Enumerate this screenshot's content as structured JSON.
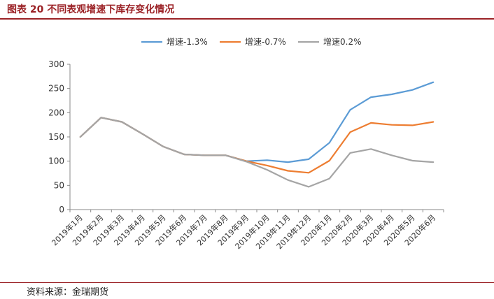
{
  "figure": {
    "title": "图表 20 不同表观增速下库存变化情况",
    "source": "资料来源：金瑞期货"
  },
  "chart_data": {
    "type": "line",
    "categories": [
      "2019年1月",
      "2019年2月",
      "2019年3月",
      "2019年4月",
      "2019年5月",
      "2019年6月",
      "2019年7月",
      "2019年8月",
      "2019年9月",
      "2019年10月",
      "2019年11月",
      "2019年12月",
      "2020年1月",
      "2020年2月",
      "2020年3月",
      "2020年4月",
      "2020年5月",
      "2020年6月"
    ],
    "series": [
      {
        "name": "增速-1.3%",
        "color": "#5b9bd5",
        "values": [
          150,
          190,
          181,
          156,
          130,
          114,
          112,
          112,
          100,
          102,
          98,
          104,
          138,
          206,
          232,
          238,
          247,
          263
        ]
      },
      {
        "name": "增速-0.7%",
        "color": "#ed7d31",
        "values": [
          150,
          190,
          181,
          156,
          130,
          114,
          112,
          112,
          100,
          91,
          80,
          76,
          101,
          160,
          179,
          175,
          174,
          181
        ]
      },
      {
        "name": "增速0.2%",
        "color": "#a5a5a5",
        "values": [
          150,
          190,
          181,
          156,
          130,
          114,
          112,
          112,
          99,
          82,
          61,
          47,
          64,
          117,
          125,
          112,
          101,
          98
        ]
      }
    ],
    "ylim": [
      0,
      300
    ],
    "yticks": [
      0,
      50,
      100,
      150,
      200,
      250,
      300
    ],
    "grid": false,
    "legend_position": "top"
  }
}
